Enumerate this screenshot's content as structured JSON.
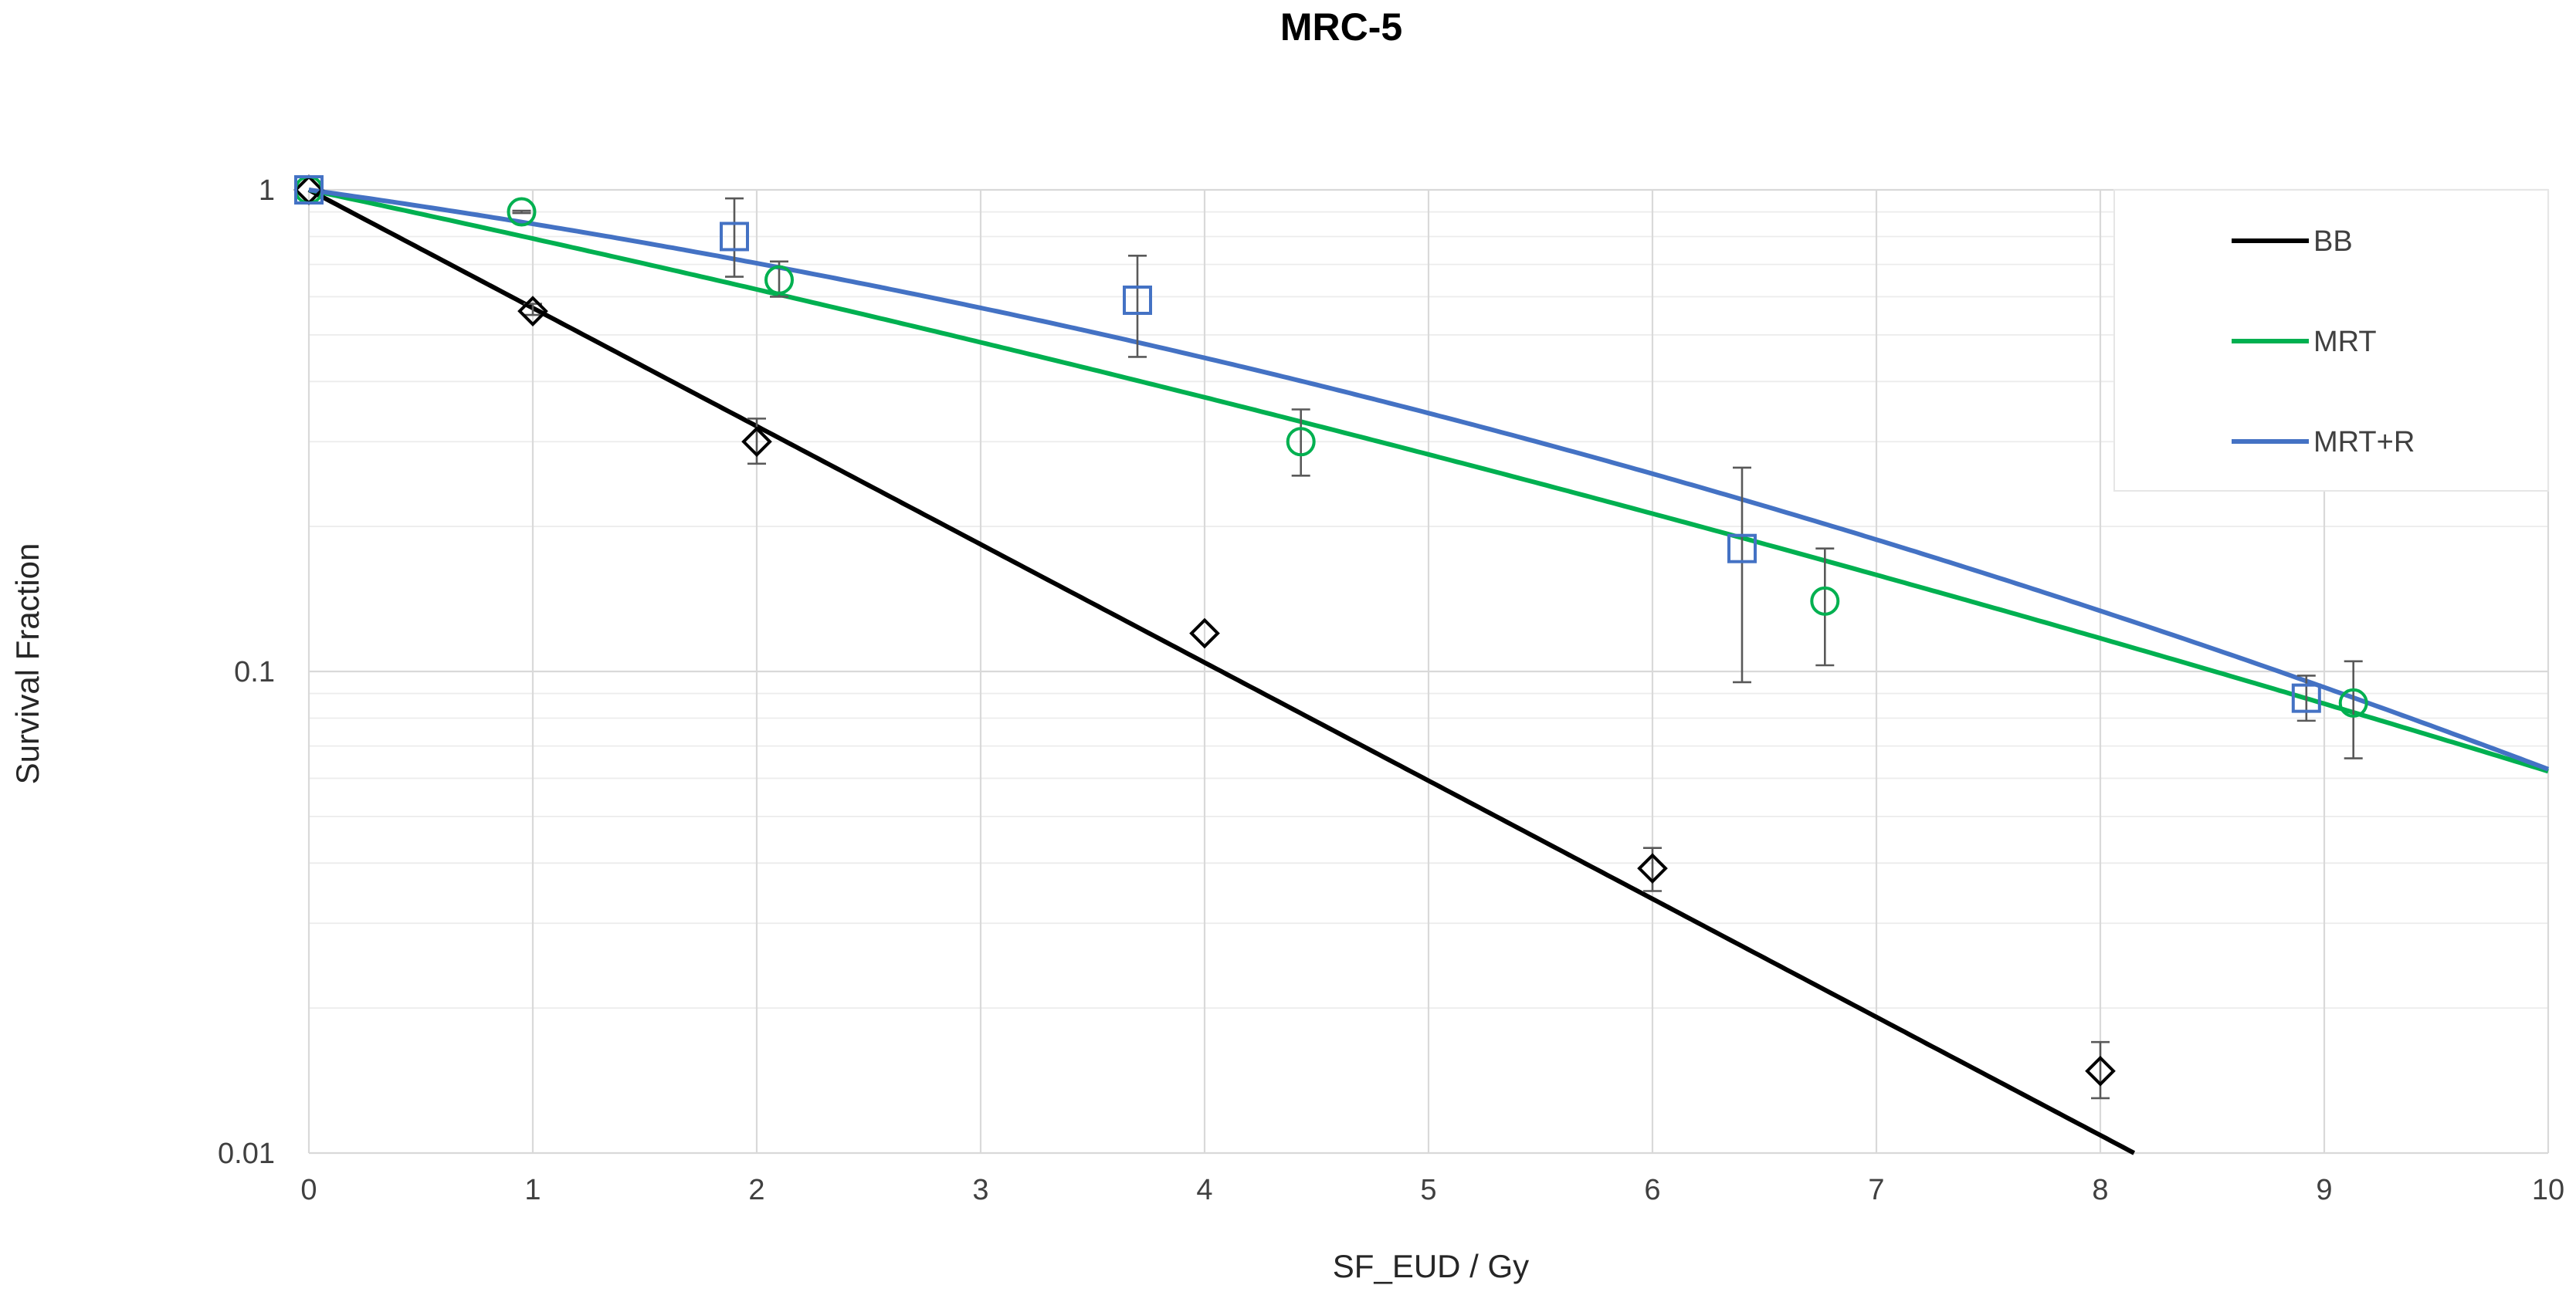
{
  "chart_data": {
    "type": "scatter",
    "title": "MRC-5",
    "xlabel": "SF_EUD / Gy",
    "ylabel": "Survival Fraction",
    "xlim": [
      0,
      10
    ],
    "ylim": [
      0.01,
      1
    ],
    "yscale": "log",
    "x_ticks": [
      "0",
      "1",
      "2",
      "3",
      "4",
      "5",
      "6",
      "7",
      "8",
      "9",
      "10"
    ],
    "y_ticks": [
      "1",
      "0.1",
      "0.01"
    ],
    "legend_position": "top-right",
    "legend": [
      "BB",
      "MRT",
      "MRT+R"
    ],
    "series": [
      {
        "name": "BB",
        "color": "#000000",
        "marker": "diamond",
        "fit_alpha": 0.565,
        "fit_beta": 0.0,
        "points": [
          {
            "x": 0,
            "y": 1.0
          },
          {
            "x": 1,
            "y": 0.56,
            "lo": 0.55,
            "hi": 0.58
          },
          {
            "x": 2,
            "y": 0.3,
            "lo": 0.27,
            "hi": 0.335
          },
          {
            "x": 4,
            "y": 0.12
          },
          {
            "x": 6,
            "y": 0.039,
            "lo": 0.035,
            "hi": 0.043
          },
          {
            "x": 8,
            "y": 0.0148,
            "lo": 0.013,
            "hi": 0.017
          }
        ]
      },
      {
        "name": "MRT",
        "color": "#00b050",
        "marker": "circle",
        "fit_alpha": 0.228,
        "fit_beta": 0.005,
        "points": [
          {
            "x": 0,
            "y": 1.0
          },
          {
            "x": 0.95,
            "y": 0.9,
            "lo": 0.895,
            "hi": 0.905
          },
          {
            "x": 2.1,
            "y": 0.65,
            "lo": 0.6,
            "hi": 0.71
          },
          {
            "x": 4.43,
            "y": 0.3,
            "lo": 0.255,
            "hi": 0.35
          },
          {
            "x": 6.77,
            "y": 0.14,
            "lo": 0.103,
            "hi": 0.18
          },
          {
            "x": 9.13,
            "y": 0.086,
            "lo": 0.066,
            "hi": 0.105
          }
        ]
      },
      {
        "name": "MRT+R",
        "color": "#4472c4",
        "marker": "square",
        "fit_alpha": 0.15,
        "fit_beta": 0.0127,
        "points": [
          {
            "x": 0,
            "y": 1.0
          },
          {
            "x": 1.9,
            "y": 0.8,
            "lo": 0.66,
            "hi": 0.96
          },
          {
            "x": 3.7,
            "y": 0.59,
            "lo": 0.45,
            "hi": 0.73
          },
          {
            "x": 6.4,
            "y": 0.18,
            "lo": 0.095,
            "hi": 0.265
          },
          {
            "x": 8.92,
            "y": 0.088,
            "lo": 0.079,
            "hi": 0.098
          }
        ]
      }
    ]
  }
}
